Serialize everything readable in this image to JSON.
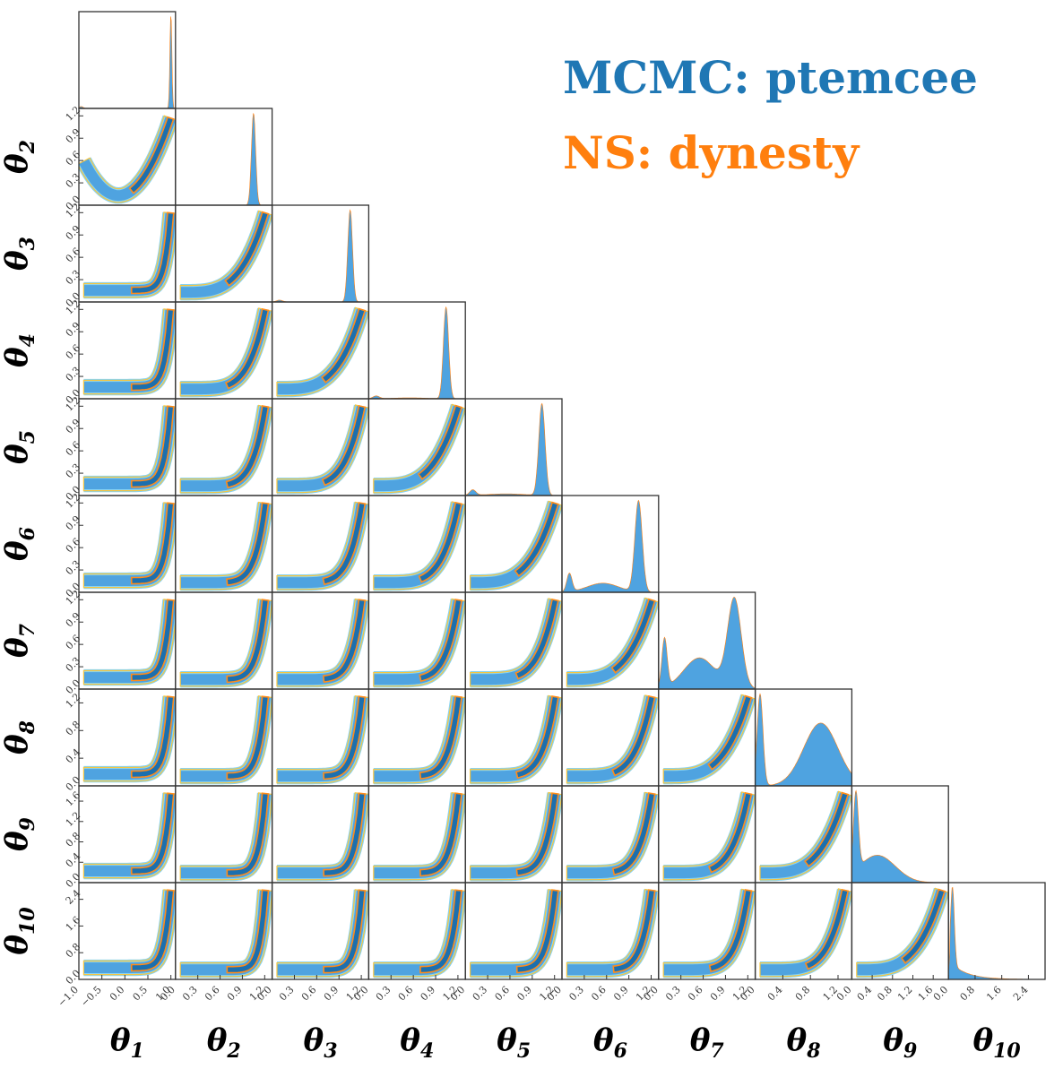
{
  "chart_data": {
    "type": "corner",
    "parameters": [
      "θ1",
      "θ2",
      "θ3",
      "θ4",
      "θ5",
      "θ6",
      "θ7",
      "θ8",
      "θ9",
      "θ10"
    ],
    "parameter_labels": [
      {
        "base": "θ",
        "sub": "1"
      },
      {
        "base": "θ",
        "sub": "2"
      },
      {
        "base": "θ",
        "sub": "3"
      },
      {
        "base": "θ",
        "sub": "4"
      },
      {
        "base": "θ",
        "sub": "5"
      },
      {
        "base": "θ",
        "sub": "6"
      },
      {
        "base": "θ",
        "sub": "7"
      },
      {
        "base": "θ",
        "sub": "8"
      },
      {
        "base": "θ",
        "sub": "9"
      },
      {
        "base": "θ",
        "sub": "10"
      }
    ],
    "axis_ranges": [
      [
        -1.0,
        1.1
      ],
      [
        0.0,
        1.3
      ],
      [
        0.0,
        1.3
      ],
      [
        0.0,
        1.3
      ],
      [
        0.0,
        1.3
      ],
      [
        0.0,
        1.3
      ],
      [
        0.0,
        1.3
      ],
      [
        0.0,
        1.4
      ],
      [
        0.0,
        1.9
      ],
      [
        0.0,
        2.9
      ]
    ],
    "ticks": [
      [
        "−1.0",
        "−0.5",
        "0.0",
        "0.5",
        "1.0"
      ],
      [
        "0.0",
        "0.3",
        "0.6",
        "0.9",
        "1.2"
      ],
      [
        "0.0",
        "0.3",
        "0.6",
        "0.9",
        "1.2"
      ],
      [
        "0.0",
        "0.3",
        "0.6",
        "0.9",
        "1.2"
      ],
      [
        "0.0",
        "0.3",
        "0.6",
        "0.9",
        "1.2"
      ],
      [
        "0.0",
        "0.3",
        "0.6",
        "0.9",
        "1.2"
      ],
      [
        "0.0",
        "0.3",
        "0.6",
        "0.9",
        "1.2"
      ],
      [
        "0.0",
        "0.4",
        "0.8",
        "1.2"
      ],
      [
        "0.0",
        "0.4",
        "0.8",
        "1.2",
        "1.6"
      ],
      [
        "0.0",
        "0.8",
        "1.6",
        "2.4"
      ]
    ],
    "tick_values": [
      [
        -1.0,
        -0.5,
        0.0,
        0.5,
        1.0
      ],
      [
        0.0,
        0.3,
        0.6,
        0.9,
        1.2
      ],
      [
        0.0,
        0.3,
        0.6,
        0.9,
        1.2
      ],
      [
        0.0,
        0.3,
        0.6,
        0.9,
        1.2
      ],
      [
        0.0,
        0.3,
        0.6,
        0.9,
        1.2
      ],
      [
        0.0,
        0.3,
        0.6,
        0.9,
        1.2
      ],
      [
        0.0,
        0.3,
        0.6,
        0.9,
        1.2
      ],
      [
        0.0,
        0.4,
        0.8,
        1.2
      ],
      [
        0.0,
        0.4,
        0.8,
        1.2,
        1.6
      ],
      [
        0.0,
        0.8,
        1.6,
        2.4
      ]
    ],
    "series": [
      {
        "name": "MCMC: ptemcee",
        "color": "#1f77b4",
        "fill_colors": [
          "#1c6fae",
          "#4fa3e0",
          "#87d3f3"
        ]
      },
      {
        "name": "NS: dynesty",
        "color": "#ff7f0e",
        "contour_colors": [
          "#ff8c1a",
          "#f5c542",
          "#f0e68c"
        ]
      }
    ],
    "marginal_shape": {
      "peak": [
        1.0,
        1.05,
        1.05,
        1.04,
        1.03,
        1.03,
        1.02,
        0.95,
        0.1,
        0.1
      ],
      "width": [
        0.03,
        0.04,
        0.045,
        0.05,
        0.06,
        0.07,
        0.12,
        0.3,
        0.25,
        0.08
      ],
      "low_peak": [
        -0.95,
        null,
        0.1,
        0.1,
        0.1,
        0.12,
        0.08,
        0.06,
        0.5,
        0.3
      ],
      "low_weight": [
        0.02,
        0,
        0.02,
        0.03,
        0.06,
        0.18,
        0.6,
        0.9,
        0.35,
        0.15
      ]
    },
    "legend": "top-right"
  }
}
